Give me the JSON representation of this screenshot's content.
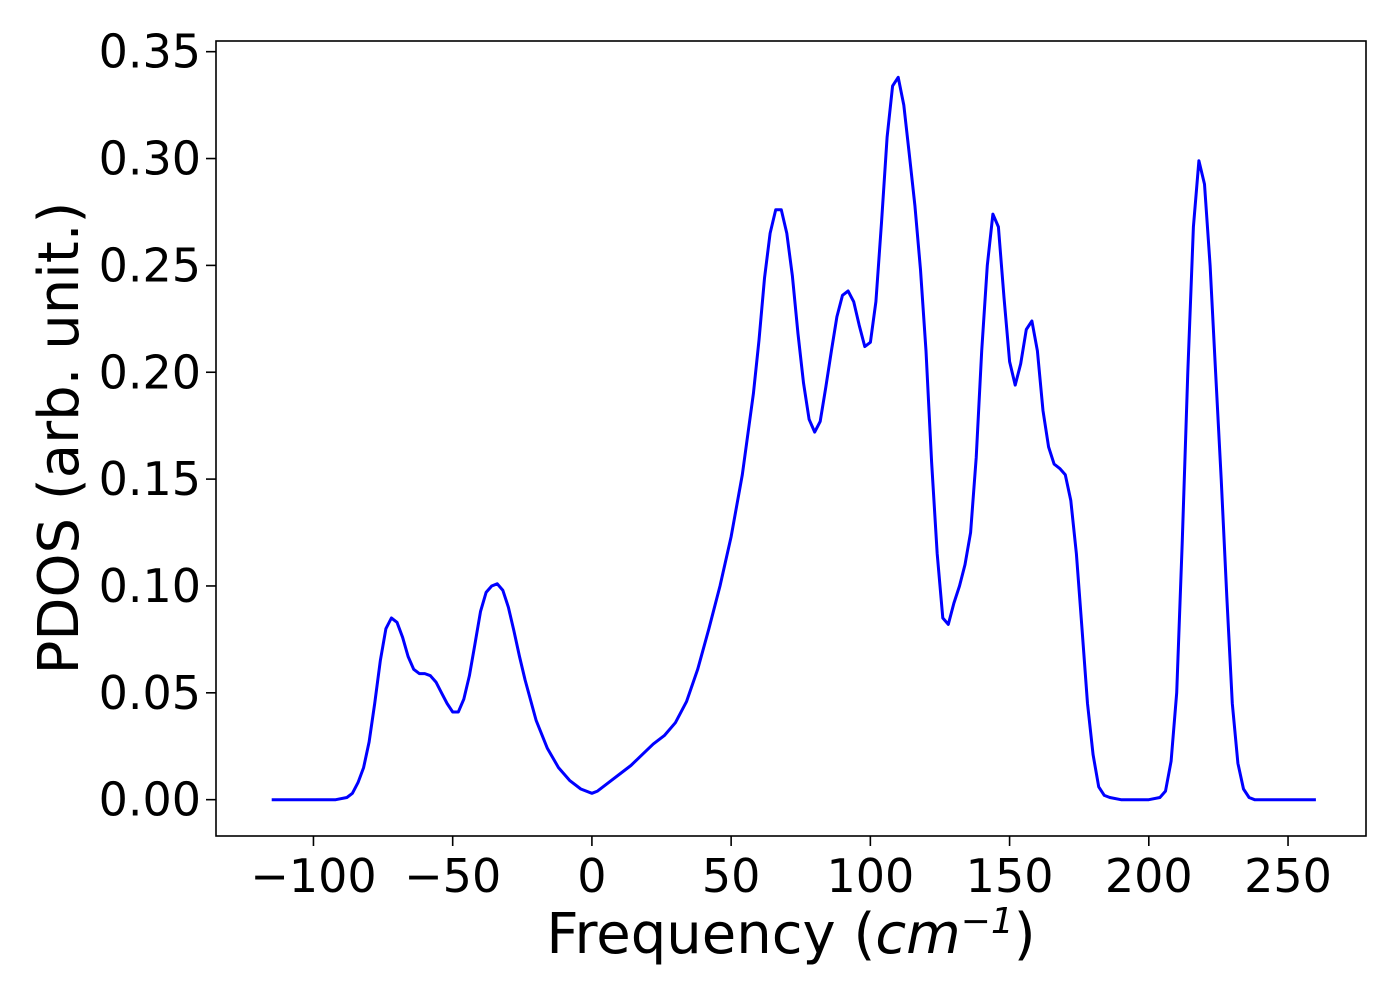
{
  "chart_data": {
    "type": "line",
    "title": "",
    "xlabel": "Frequency (",
    "xlabel_unit_base": "cm",
    "xlabel_unit_exp": "−1",
    "xlabel_close": ")",
    "ylabel": "PDOS (arb. unit.)",
    "xlim": [
      -135,
      278
    ],
    "ylim": [
      -0.017,
      0.355
    ],
    "xticks": [
      -100,
      -50,
      0,
      50,
      100,
      150,
      200,
      250
    ],
    "xtick_labels": [
      "−100",
      "−50",
      "0",
      "50",
      "100",
      "150",
      "200",
      "250"
    ],
    "yticks": [
      0.0,
      0.05,
      0.1,
      0.15,
      0.2,
      0.25,
      0.3,
      0.35
    ],
    "ytick_labels": [
      "0.00",
      "0.05",
      "0.10",
      "0.15",
      "0.20",
      "0.25",
      "0.30",
      "0.35"
    ],
    "grid": false,
    "legend": "none",
    "color": "#0000ff",
    "series": [
      {
        "x": [
          -115,
          -100,
          -92,
          -88,
          -86,
          -84,
          -82,
          -80,
          -78,
          -76,
          -74,
          -72,
          -70,
          -68,
          -66,
          -64,
          -62,
          -60,
          -58,
          -56,
          -54,
          -52,
          -50,
          -48,
          -46,
          -44,
          -42,
          -40,
          -38,
          -36,
          -34,
          -32,
          -30,
          -28,
          -26,
          -24,
          -20,
          -16,
          -12,
          -8,
          -4,
          0,
          2,
          6,
          10,
          14,
          18,
          22,
          26,
          30,
          34,
          38,
          42,
          46,
          50,
          54,
          58,
          60,
          62,
          64,
          66,
          68,
          70,
          72,
          74,
          76,
          78,
          80,
          82,
          84,
          86,
          88,
          90,
          92,
          94,
          96,
          98,
          100,
          102,
          104,
          106,
          108,
          110,
          112,
          114,
          116,
          118,
          120,
          122,
          124,
          126,
          128,
          130,
          132,
          134,
          136,
          138,
          140,
          142,
          144,
          146,
          148,
          150,
          152,
          154,
          156,
          158,
          160,
          162,
          164,
          166,
          168,
          170,
          172,
          174,
          176,
          178,
          180,
          182,
          184,
          186,
          190,
          195,
          200,
          204,
          206,
          208,
          210,
          212,
          214,
          216,
          218,
          220,
          222,
          224,
          226,
          228,
          230,
          232,
          234,
          236,
          238,
          240,
          250,
          260
        ],
        "y": [
          0,
          0,
          0,
          0.001,
          0.003,
          0.008,
          0.015,
          0.027,
          0.045,
          0.065,
          0.08,
          0.085,
          0.083,
          0.076,
          0.067,
          0.061,
          0.059,
          0.059,
          0.058,
          0.055,
          0.05,
          0.045,
          0.041,
          0.041,
          0.047,
          0.058,
          0.073,
          0.088,
          0.097,
          0.1,
          0.101,
          0.098,
          0.09,
          0.079,
          0.067,
          0.056,
          0.037,
          0.024,
          0.015,
          0.009,
          0.005,
          0.003,
          0.004,
          0.008,
          0.012,
          0.016,
          0.021,
          0.026,
          0.03,
          0.036,
          0.046,
          0.061,
          0.08,
          0.1,
          0.123,
          0.152,
          0.19,
          0.215,
          0.244,
          0.265,
          0.276,
          0.276,
          0.265,
          0.245,
          0.218,
          0.195,
          0.178,
          0.172,
          0.177,
          0.193,
          0.21,
          0.226,
          0.236,
          0.238,
          0.233,
          0.222,
          0.212,
          0.214,
          0.233,
          0.27,
          0.31,
          0.334,
          0.338,
          0.325,
          0.302,
          0.278,
          0.248,
          0.21,
          0.158,
          0.115,
          0.085,
          0.082,
          0.092,
          0.1,
          0.11,
          0.125,
          0.16,
          0.21,
          0.25,
          0.274,
          0.268,
          0.235,
          0.205,
          0.194,
          0.204,
          0.22,
          0.224,
          0.21,
          0.182,
          0.165,
          0.157,
          0.155,
          0.152,
          0.14,
          0.115,
          0.08,
          0.045,
          0.021,
          0.006,
          0.002,
          0.001,
          0,
          0,
          0,
          0.001,
          0.004,
          0.018,
          0.05,
          0.12,
          0.2,
          0.268,
          0.299,
          0.288,
          0.25,
          0.2,
          0.15,
          0.095,
          0.045,
          0.017,
          0.005,
          0.001,
          0,
          0,
          0,
          0
        ]
      }
    ]
  }
}
